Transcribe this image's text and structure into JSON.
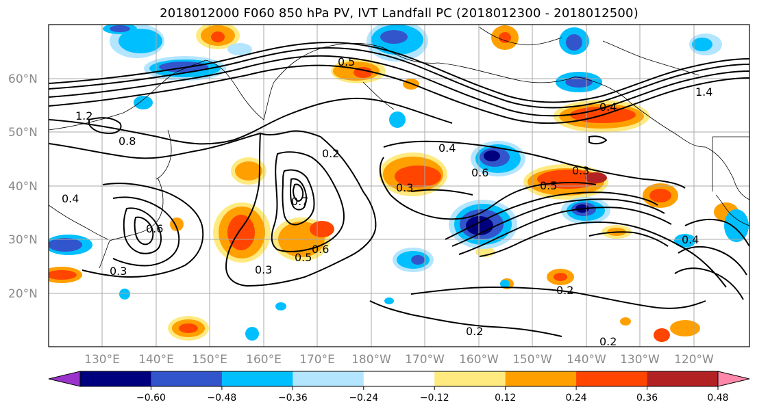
{
  "title": "2018012000 F060 850 hPa PV, IVT Landfall PC (2018012300 - 2018012500)",
  "lat_labels": [
    "60°N",
    "50°N",
    "40°N",
    "30°N",
    "20°N"
  ],
  "lon_labels": [
    "130°E",
    "140°E",
    "150°E",
    "160°E",
    "170°E",
    "180°W",
    "170°W",
    "160°W",
    "150°W",
    "140°W",
    "130°W",
    "120°W"
  ],
  "colorbar": {
    "colors": [
      "#9933cc",
      "#00007f",
      "#3355cc",
      "#00bfff",
      "#b3e5ff",
      "#ffffff",
      "#ffea80",
      "#ffa000",
      "#ff4500",
      "#b22222",
      "#ff88aa"
    ],
    "tick_labels": [
      "-0.60",
      "-0.48",
      "-0.36",
      "-0.24",
      "-0.12",
      "0.12",
      "0.24",
      "0.36",
      "0.48",
      "0.60"
    ]
  },
  "contour_labels": [
    "0.3",
    "0.5",
    "0.4",
    "0.2",
    "0.6",
    "0.8",
    "1.2",
    "0.7",
    "1.4"
  ]
}
